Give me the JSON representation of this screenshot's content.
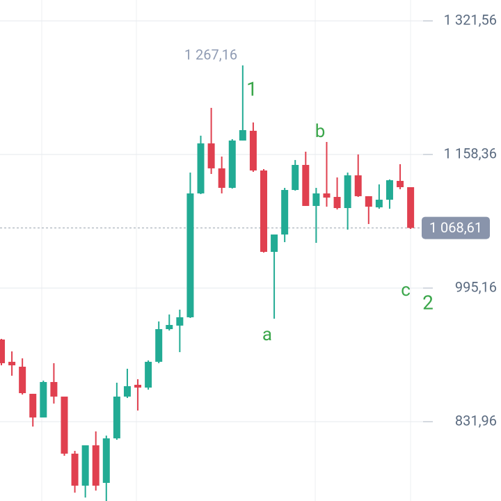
{
  "chart_data": {
    "type": "candlestick",
    "up_color": "#22ab94",
    "down_color": "#e0404f",
    "grid": true,
    "ylim": [
      735.06,
      1347.06
    ],
    "yticks": [
      {
        "value": 1321.56,
        "label": "1 321,56"
      },
      {
        "value": 1158.36,
        "label": "1 158,36"
      },
      {
        "value": 995.16,
        "label": "995,16"
      },
      {
        "value": 831.96,
        "label": "831,96"
      }
    ],
    "open": [
      932.3,
      905.1,
      899.1,
      866.0,
      837.1,
      880.4,
      862.6,
      792.9,
      753.8,
      803.1,
      757.2,
      811.6,
      862.6,
      877.0,
      873.6,
      905.1,
      945.0,
      949.3,
      959.5,
      1110.8,
      1171.9,
      1141.4,
      1117.6,
      1175.4,
      1187.3,
      1138.8,
      1039.4,
      1060.6,
      1115.0,
      1145.6,
      1095.5,
      1110.8,
      1106.5,
      1092.9,
      1132.9,
      1107.4,
      1093.8,
      1103.1,
      1126.1,
      1118.4
    ],
    "high": [
      933.1,
      917.8,
      909.3,
      866.0,
      882.1,
      903.4,
      862.6,
      796.3,
      803.1,
      820.1,
      815.0,
      879.6,
      896.6,
      883.8,
      906.8,
      954.4,
      962.9,
      968.8,
      1136.3,
      1181.3,
      1215.3,
      1155.8,
      1177.1,
      1267.16,
      1197.5,
      1140.5,
      1060.6,
      1117.6,
      1151.6,
      1161.8,
      1117.6,
      1173.7,
      1130.3,
      1136.3,
      1158.4,
      1107.4,
      1121.8,
      1127.8,
      1146.5,
      1118.4
    ],
    "low": [
      900.8,
      888.1,
      865.1,
      826.0,
      837.1,
      854.1,
      790.3,
      745.3,
      739.3,
      747.8,
      735.1,
      809.9,
      860.9,
      845.6,
      871.1,
      903.4,
      943.3,
      916.9,
      958.6,
      1109.9,
      1134.6,
      1110.8,
      1116.7,
      1175.4,
      1137.1,
      1038.5,
      957.8,
      1051.3,
      1114.2,
      1095.5,
      1050.4,
      1094.6,
      1091.2,
      1066.6,
      1106.5,
      1073.4,
      1092.1,
      1092.1,
      1115.9,
      1067.4
    ],
    "close": [
      903.4,
      900.8,
      866.8,
      837.1,
      880.4,
      862.6,
      792.9,
      753.8,
      803.1,
      753.8,
      811.6,
      862.6,
      875.3,
      873.6,
      905.1,
      945.0,
      950.1,
      959.5,
      1110.8,
      1171.9,
      1141.4,
      1117.6,
      1175.4,
      1188.1,
      1138.8,
      1039.4,
      1060.6,
      1115.0,
      1145.6,
      1095.5,
      1110.8,
      1105.7,
      1092.9,
      1132.9,
      1107.4,
      1094.6,
      1103.1,
      1126.9,
      1118.4,
      1068.61
    ],
    "high_label": {
      "value": 1267.16,
      "label": "1 267,16"
    },
    "last_price": {
      "value": 1068.61,
      "label": "1 068,61"
    },
    "annotations": [
      "1",
      "a",
      "b",
      "c",
      "2"
    ]
  }
}
